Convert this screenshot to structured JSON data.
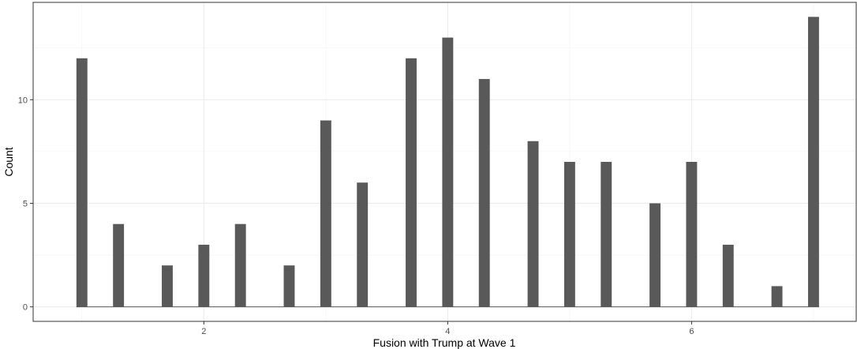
{
  "chart_data": {
    "type": "bar",
    "xlabel": "Fusion with Trump at Wave 1",
    "ylabel": "Count",
    "x": [
      1,
      1.3,
      1.7,
      2,
      2.3,
      2.7,
      3,
      3.3,
      3.7,
      4,
      4.3,
      4.7,
      5,
      5.3,
      5.7,
      6,
      6.3,
      6.7,
      7
    ],
    "values": [
      12,
      4,
      2,
      3,
      4,
      2,
      9,
      6,
      12,
      13,
      11,
      8,
      7,
      7,
      5,
      7,
      3,
      1,
      14
    ],
    "xlim": [
      0.6,
      7.35
    ],
    "ylim": [
      -0.7,
      14.7
    ],
    "xticks": [
      2,
      4,
      6
    ],
    "xtick_labels": [
      "2",
      "4",
      "6"
    ],
    "yticks": [
      0,
      5,
      10
    ],
    "ytick_labels": [
      "0",
      "5",
      "10"
    ],
    "bar_color": "#595959",
    "grid": true,
    "theme": "bw"
  }
}
